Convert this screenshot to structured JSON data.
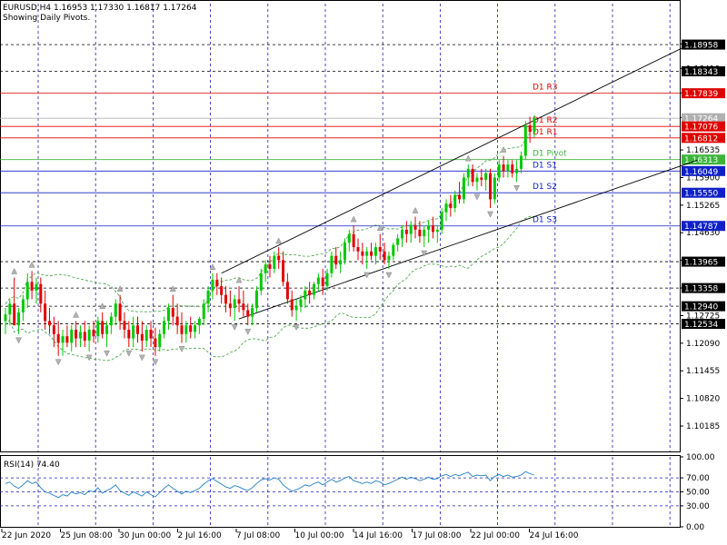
{
  "header": {
    "symbol_line": "EURUSD,H4  1.16953 1.17330 1.16817 1.17264",
    "subtitle": "Showing Daily Pivots."
  },
  "rsi_header": "RSI(14) 74.40",
  "colors": {
    "bull": "#00c800",
    "bear": "#e00000",
    "grid": "#1c1cb0",
    "resistance": "#e00000",
    "support": "#1020c8",
    "pivot": "#3cb43c",
    "bollinger": "#3ca03c",
    "rsi_line": "#2080c0",
    "current_price": "#b0b0b0"
  },
  "chart_data": [
    {
      "type": "candlestick",
      "title": "EURUSD,H4",
      "ylim": [
        1.096,
        1.199
      ],
      "price_ticks": [
        "1.18975",
        "1.18410",
        "1.17845",
        "1.17280",
        "1.16535",
        "1.15900",
        "1.15265",
        "1.14630",
        "1.13995",
        "1.13360",
        "1.12725",
        "1.12090",
        "1.11455",
        "1.10820",
        "1.10185"
      ],
      "x_tick_labels": [
        "22 Jun 2020",
        "25 Jun 08:00",
        "30 Jun 00:00",
        "2 Jul 16:00",
        "7 Jul 08:00",
        "10 Jul 00:00",
        "14 Jul 16:00",
        "17 Jul 08:00",
        "22 Jul 00:00",
        "24 Jul 16:00"
      ],
      "horizontal_levels": [
        {
          "price": 1.18958,
          "label": "1.18958",
          "kind": "dashed"
        },
        {
          "price": 1.18343,
          "label": "1.18343",
          "kind": "dashed"
        },
        {
          "price": 1.17839,
          "label": "1.17839",
          "kind": "resistance",
          "pivot_name": "D1 R3"
        },
        {
          "price": 1.17264,
          "label": "1.17264",
          "kind": "current"
        },
        {
          "price": 1.17076,
          "label": "1.17076",
          "kind": "resistance",
          "pivot_name": "D1 R2"
        },
        {
          "price": 1.16812,
          "label": "1.16812",
          "kind": "resistance",
          "pivot_name": "D1 R1"
        },
        {
          "price": 1.16313,
          "label": "1.16313",
          "kind": "pivot",
          "pivot_name": "D1 Pivot"
        },
        {
          "price": 1.16049,
          "label": "1.16049",
          "kind": "support",
          "pivot_name": "D1 S1"
        },
        {
          "price": 1.1555,
          "label": "1.15550",
          "kind": "support",
          "pivot_name": "D1 S2"
        },
        {
          "price": 1.14787,
          "label": "1.14787",
          "kind": "support",
          "pivot_name": "D1 S3"
        },
        {
          "price": 1.13965,
          "label": "1.13965",
          "kind": "dashed"
        },
        {
          "price": 1.13358,
          "label": "1.13358",
          "kind": "dashed"
        },
        {
          "price": 1.1294,
          "label": "1.12940",
          "kind": "dashed"
        },
        {
          "price": 1.12534,
          "label": "1.12534",
          "kind": "dashed"
        }
      ],
      "channel": {
        "upper": [
          [
            49,
            1.137
          ],
          [
            157,
            1.1905
          ]
        ],
        "lower": [
          [
            53,
            1.1265
          ],
          [
            157,
            1.163
          ]
        ]
      },
      "candles": [
        {
          "o": 1.126,
          "h": 1.129,
          "l": 1.123,
          "c": 1.1275
        },
        {
          "o": 1.1275,
          "h": 1.131,
          "l": 1.125,
          "c": 1.13
        },
        {
          "o": 1.13,
          "h": 1.136,
          "l": 1.126,
          "c": 1.125
        },
        {
          "o": 1.125,
          "h": 1.129,
          "l": 1.123,
          "c": 1.128
        },
        {
          "o": 1.128,
          "h": 1.132,
          "l": 1.126,
          "c": 1.131
        },
        {
          "o": 1.131,
          "h": 1.137,
          "l": 1.129,
          "c": 1.135
        },
        {
          "o": 1.135,
          "h": 1.1375,
          "l": 1.131,
          "c": 1.133
        },
        {
          "o": 1.133,
          "h": 1.136,
          "l": 1.13,
          "c": 1.1345
        },
        {
          "o": 1.1345,
          "h": 1.136,
          "l": 1.128,
          "c": 1.13
        },
        {
          "o": 1.13,
          "h": 1.133,
          "l": 1.124,
          "c": 1.126
        },
        {
          "o": 1.126,
          "h": 1.129,
          "l": 1.123,
          "c": 1.125
        },
        {
          "o": 1.125,
          "h": 1.127,
          "l": 1.12,
          "c": 1.123
        },
        {
          "o": 1.123,
          "h": 1.126,
          "l": 1.118,
          "c": 1.121
        },
        {
          "o": 1.121,
          "h": 1.124,
          "l": 1.118,
          "c": 1.1225
        },
        {
          "o": 1.1225,
          "h": 1.125,
          "l": 1.12,
          "c": 1.121
        },
        {
          "o": 1.121,
          "h": 1.125,
          "l": 1.119,
          "c": 1.124
        },
        {
          "o": 1.124,
          "h": 1.126,
          "l": 1.12,
          "c": 1.122
        },
        {
          "o": 1.122,
          "h": 1.125,
          "l": 1.12,
          "c": 1.1235
        },
        {
          "o": 1.1235,
          "h": 1.126,
          "l": 1.12,
          "c": 1.1215
        },
        {
          "o": 1.1215,
          "h": 1.125,
          "l": 1.119,
          "c": 1.124
        },
        {
          "o": 1.124,
          "h": 1.126,
          "l": 1.121,
          "c": 1.1225
        },
        {
          "o": 1.1225,
          "h": 1.127,
          "l": 1.121,
          "c": 1.126
        },
        {
          "o": 1.126,
          "h": 1.128,
          "l": 1.122,
          "c": 1.123
        },
        {
          "o": 1.123,
          "h": 1.126,
          "l": 1.12,
          "c": 1.125
        },
        {
          "o": 1.125,
          "h": 1.128,
          "l": 1.123,
          "c": 1.127
        },
        {
          "o": 1.127,
          "h": 1.131,
          "l": 1.125,
          "c": 1.13
        },
        {
          "o": 1.13,
          "h": 1.132,
          "l": 1.124,
          "c": 1.126
        },
        {
          "o": 1.126,
          "h": 1.128,
          "l": 1.122,
          "c": 1.124
        },
        {
          "o": 1.124,
          "h": 1.126,
          "l": 1.12,
          "c": 1.122
        },
        {
          "o": 1.122,
          "h": 1.127,
          "l": 1.12,
          "c": 1.125
        },
        {
          "o": 1.125,
          "h": 1.127,
          "l": 1.121,
          "c": 1.123
        },
        {
          "o": 1.123,
          "h": 1.126,
          "l": 1.119,
          "c": 1.1215
        },
        {
          "o": 1.1215,
          "h": 1.125,
          "l": 1.12,
          "c": 1.124
        },
        {
          "o": 1.124,
          "h": 1.126,
          "l": 1.12,
          "c": 1.122
        },
        {
          "o": 1.122,
          "h": 1.1245,
          "l": 1.118,
          "c": 1.12
        },
        {
          "o": 1.12,
          "h": 1.124,
          "l": 1.119,
          "c": 1.123
        },
        {
          "o": 1.123,
          "h": 1.127,
          "l": 1.122,
          "c": 1.126
        },
        {
          "o": 1.126,
          "h": 1.13,
          "l": 1.124,
          "c": 1.129
        },
        {
          "o": 1.129,
          "h": 1.132,
          "l": 1.125,
          "c": 1.127
        },
        {
          "o": 1.127,
          "h": 1.13,
          "l": 1.123,
          "c": 1.125
        },
        {
          "o": 1.125,
          "h": 1.128,
          "l": 1.121,
          "c": 1.123
        },
        {
          "o": 1.123,
          "h": 1.126,
          "l": 1.121,
          "c": 1.125
        },
        {
          "o": 1.125,
          "h": 1.127,
          "l": 1.122,
          "c": 1.1235
        },
        {
          "o": 1.1235,
          "h": 1.126,
          "l": 1.122,
          "c": 1.125
        },
        {
          "o": 1.125,
          "h": 1.127,
          "l": 1.123,
          "c": 1.1265
        },
        {
          "o": 1.1265,
          "h": 1.131,
          "l": 1.125,
          "c": 1.13
        },
        {
          "o": 1.13,
          "h": 1.134,
          "l": 1.128,
          "c": 1.133
        },
        {
          "o": 1.133,
          "h": 1.137,
          "l": 1.131,
          "c": 1.1355
        },
        {
          "o": 1.1355,
          "h": 1.137,
          "l": 1.132,
          "c": 1.134
        },
        {
          "o": 1.134,
          "h": 1.136,
          "l": 1.13,
          "c": 1.132
        },
        {
          "o": 1.132,
          "h": 1.134,
          "l": 1.128,
          "c": 1.13
        },
        {
          "o": 1.13,
          "h": 1.133,
          "l": 1.127,
          "c": 1.129
        },
        {
          "o": 1.129,
          "h": 1.132,
          "l": 1.126,
          "c": 1.131
        },
        {
          "o": 1.131,
          "h": 1.134,
          "l": 1.128,
          "c": 1.13
        },
        {
          "o": 1.13,
          "h": 1.133,
          "l": 1.127,
          "c": 1.1285
        },
        {
          "o": 1.1285,
          "h": 1.13,
          "l": 1.125,
          "c": 1.127
        },
        {
          "o": 1.127,
          "h": 1.13,
          "l": 1.125,
          "c": 1.129
        },
        {
          "o": 1.129,
          "h": 1.134,
          "l": 1.128,
          "c": 1.133
        },
        {
          "o": 1.133,
          "h": 1.138,
          "l": 1.132,
          "c": 1.137
        },
        {
          "o": 1.137,
          "h": 1.14,
          "l": 1.135,
          "c": 1.139
        },
        {
          "o": 1.139,
          "h": 1.141,
          "l": 1.136,
          "c": 1.138
        },
        {
          "o": 1.138,
          "h": 1.142,
          "l": 1.137,
          "c": 1.141
        },
        {
          "o": 1.141,
          "h": 1.143,
          "l": 1.138,
          "c": 1.14
        },
        {
          "o": 1.14,
          "h": 1.142,
          "l": 1.134,
          "c": 1.135
        },
        {
          "o": 1.135,
          "h": 1.137,
          "l": 1.13,
          "c": 1.131
        },
        {
          "o": 1.131,
          "h": 1.133,
          "l": 1.127,
          "c": 1.1285
        },
        {
          "o": 1.1285,
          "h": 1.131,
          "l": 1.126,
          "c": 1.1295
        },
        {
          "o": 1.1295,
          "h": 1.132,
          "l": 1.128,
          "c": 1.131
        },
        {
          "o": 1.131,
          "h": 1.134,
          "l": 1.129,
          "c": 1.133
        },
        {
          "o": 1.133,
          "h": 1.135,
          "l": 1.13,
          "c": 1.132
        },
        {
          "o": 1.132,
          "h": 1.135,
          "l": 1.131,
          "c": 1.1345
        },
        {
          "o": 1.1345,
          "h": 1.137,
          "l": 1.133,
          "c": 1.136
        },
        {
          "o": 1.136,
          "h": 1.138,
          "l": 1.132,
          "c": 1.134
        },
        {
          "o": 1.134,
          "h": 1.138,
          "l": 1.133,
          "c": 1.137
        },
        {
          "o": 1.137,
          "h": 1.142,
          "l": 1.136,
          "c": 1.141
        },
        {
          "o": 1.141,
          "h": 1.143,
          "l": 1.138,
          "c": 1.139
        },
        {
          "o": 1.139,
          "h": 1.142,
          "l": 1.137,
          "c": 1.14
        },
        {
          "o": 1.14,
          "h": 1.145,
          "l": 1.139,
          "c": 1.144
        },
        {
          "o": 1.144,
          "h": 1.147,
          "l": 1.142,
          "c": 1.146
        },
        {
          "o": 1.146,
          "h": 1.148,
          "l": 1.142,
          "c": 1.143
        },
        {
          "o": 1.143,
          "h": 1.145,
          "l": 1.14,
          "c": 1.142
        },
        {
          "o": 1.142,
          "h": 1.144,
          "l": 1.139,
          "c": 1.141
        },
        {
          "o": 1.141,
          "h": 1.143,
          "l": 1.138,
          "c": 1.142
        },
        {
          "o": 1.142,
          "h": 1.144,
          "l": 1.14,
          "c": 1.141
        },
        {
          "o": 1.141,
          "h": 1.144,
          "l": 1.139,
          "c": 1.143
        },
        {
          "o": 1.143,
          "h": 1.146,
          "l": 1.14,
          "c": 1.142
        },
        {
          "o": 1.142,
          "h": 1.144,
          "l": 1.139,
          "c": 1.14
        },
        {
          "o": 1.14,
          "h": 1.142,
          "l": 1.138,
          "c": 1.141
        },
        {
          "o": 1.141,
          "h": 1.144,
          "l": 1.14,
          "c": 1.1435
        },
        {
          "o": 1.1435,
          "h": 1.146,
          "l": 1.142,
          "c": 1.145
        },
        {
          "o": 1.145,
          "h": 1.148,
          "l": 1.143,
          "c": 1.147
        },
        {
          "o": 1.147,
          "h": 1.149,
          "l": 1.144,
          "c": 1.146
        },
        {
          "o": 1.146,
          "h": 1.149,
          "l": 1.144,
          "c": 1.148
        },
        {
          "o": 1.148,
          "h": 1.15,
          "l": 1.145,
          "c": 1.147
        },
        {
          "o": 1.147,
          "h": 1.149,
          "l": 1.144,
          "c": 1.1455
        },
        {
          "o": 1.1455,
          "h": 1.148,
          "l": 1.143,
          "c": 1.147
        },
        {
          "o": 1.147,
          "h": 1.149,
          "l": 1.144,
          "c": 1.148
        },
        {
          "o": 1.148,
          "h": 1.15,
          "l": 1.145,
          "c": 1.1465
        },
        {
          "o": 1.1465,
          "h": 1.148,
          "l": 1.144,
          "c": 1.147
        },
        {
          "o": 1.147,
          "h": 1.152,
          "l": 1.146,
          "c": 1.151
        },
        {
          "o": 1.151,
          "h": 1.154,
          "l": 1.149,
          "c": 1.153
        },
        {
          "o": 1.153,
          "h": 1.155,
          "l": 1.15,
          "c": 1.152
        },
        {
          "o": 1.152,
          "h": 1.156,
          "l": 1.151,
          "c": 1.155
        },
        {
          "o": 1.155,
          "h": 1.158,
          "l": 1.153,
          "c": 1.154
        },
        {
          "o": 1.154,
          "h": 1.16,
          "l": 1.153,
          "c": 1.159
        },
        {
          "o": 1.159,
          "h": 1.162,
          "l": 1.157,
          "c": 1.161
        },
        {
          "o": 1.161,
          "h": 1.162,
          "l": 1.157,
          "c": 1.158
        },
        {
          "o": 1.158,
          "h": 1.16,
          "l": 1.156,
          "c": 1.159
        },
        {
          "o": 1.159,
          "h": 1.161,
          "l": 1.157,
          "c": 1.1585
        },
        {
          "o": 1.1585,
          "h": 1.161,
          "l": 1.156,
          "c": 1.16
        },
        {
          "o": 1.16,
          "h": 1.161,
          "l": 1.152,
          "c": 1.154
        },
        {
          "o": 1.154,
          "h": 1.16,
          "l": 1.153,
          "c": 1.159
        },
        {
          "o": 1.159,
          "h": 1.163,
          "l": 1.158,
          "c": 1.162
        },
        {
          "o": 1.162,
          "h": 1.164,
          "l": 1.159,
          "c": 1.1605
        },
        {
          "o": 1.1605,
          "h": 1.163,
          "l": 1.159,
          "c": 1.162
        },
        {
          "o": 1.162,
          "h": 1.163,
          "l": 1.159,
          "c": 1.16
        },
        {
          "o": 1.16,
          "h": 1.163,
          "l": 1.158,
          "c": 1.161
        },
        {
          "o": 1.161,
          "h": 1.165,
          "l": 1.16,
          "c": 1.164
        },
        {
          "o": 1.164,
          "h": 1.172,
          "l": 1.163,
          "c": 1.171
        },
        {
          "o": 1.171,
          "h": 1.173,
          "l": 1.167,
          "c": 1.1695
        },
        {
          "o": 1.1695,
          "h": 1.1733,
          "l": 1.1682,
          "c": 1.1726
        }
      ],
      "rsi": {
        "label": "RSI(14)",
        "value": 74.4,
        "ylim": [
          0,
          100
        ],
        "ticks": [
          "100.00",
          "70.00",
          "50.00",
          "30.00",
          "0.00"
        ],
        "values": [
          62,
          64,
          58,
          55,
          60,
          66,
          62,
          64,
          56,
          50,
          48,
          45,
          42,
          46,
          44,
          50,
          47,
          49,
          46,
          52,
          50,
          56,
          48,
          52,
          55,
          60,
          52,
          48,
          45,
          50,
          47,
          44,
          50,
          46,
          43,
          49,
          55,
          60,
          55,
          51,
          47,
          51,
          49,
          52,
          55,
          61,
          66,
          69,
          65,
          61,
          57,
          55,
          59,
          57,
          54,
          52,
          56,
          62,
          67,
          69,
          67,
          70,
          68,
          60,
          55,
          51,
          53,
          56,
          60,
          58,
          62,
          64,
          60,
          64,
          68,
          64,
          66,
          70,
          72,
          66,
          64,
          62,
          64,
          62,
          66,
          64,
          60,
          62,
          65,
          68,
          71,
          68,
          71,
          69,
          66,
          68,
          71,
          68,
          69,
          73,
          75,
          72,
          75,
          73,
          76,
          78,
          72,
          74,
          73,
          74,
          66,
          72,
          75,
          72,
          74,
          71,
          72,
          74,
          79,
          76,
          74
        ]
      }
    }
  ]
}
